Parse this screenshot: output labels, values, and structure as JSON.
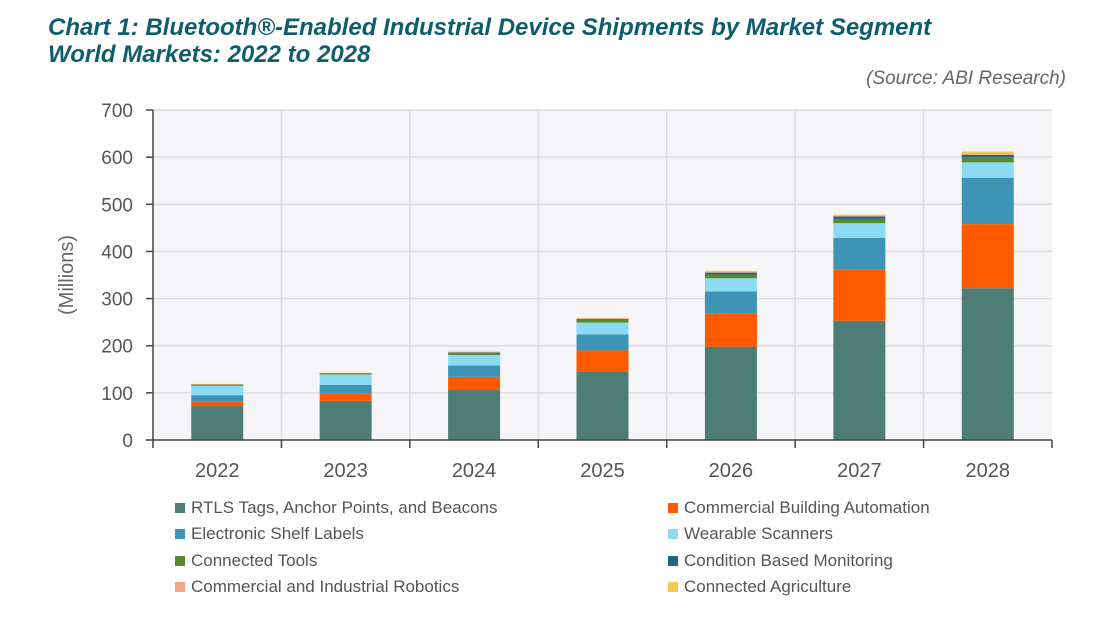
{
  "title_line1": "Chart 1: Bluetooth®-Enabled Industrial Device Shipments by Market Segment",
  "title_line2": "World Markets: 2022 to 2028",
  "source": "(Source: ABI Research)",
  "chart_data": {
    "type": "bar",
    "stacked": true,
    "title": "Chart 1: Bluetooth®-Enabled Industrial Device Shipments by Market Segment World Markets: 2022 to 2028",
    "xlabel": "",
    "ylabel": "(Millions)",
    "ylim": [
      0,
      700
    ],
    "yticks": [
      "0",
      "100",
      "200",
      "300",
      "400",
      "500",
      "600",
      "700"
    ],
    "grid": true,
    "legend_position": "bottom",
    "categories": [
      "2022",
      "2023",
      "2024",
      "2025",
      "2026",
      "2027",
      "2028"
    ],
    "series": [
      {
        "name": "RTLS Tags, Anchor Points, and Beacons",
        "color": "#4e7d78",
        "values": [
          72,
          83,
          106,
          146,
          198,
          253,
          322
        ]
      },
      {
        "name": "Commercial  Building Automation",
        "color": "#ff5a00",
        "values": [
          9,
          16,
          28,
          44,
          70,
          108,
          136
        ]
      },
      {
        "name": "Electronic Shelf Labels",
        "color": "#3d94b4",
        "values": [
          14,
          18,
          24,
          34,
          47,
          68,
          98
        ]
      },
      {
        "name": "Wearable Scanners",
        "color": "#8ddaf5",
        "values": [
          20,
          22,
          22,
          25,
          28,
          31,
          33
        ]
      },
      {
        "name": "Connected Tools",
        "color": "#5a8a2e",
        "values": [
          2,
          2,
          5,
          6,
          8,
          9,
          11
        ]
      },
      {
        "name": "Condition Based Monitoring",
        "color": "#1e6a80",
        "values": [
          1,
          1,
          1,
          2,
          4,
          5,
          5
        ]
      },
      {
        "name": "Commercial and Industrial Robotics",
        "color": "#f5a58a",
        "values": [
          0.5,
          0.5,
          1,
          1,
          2,
          2,
          3
        ]
      },
      {
        "name": "Connected Agriculture",
        "color": "#f7c948",
        "values": [
          0.5,
          0.5,
          1,
          1,
          2,
          2,
          4
        ]
      }
    ]
  }
}
